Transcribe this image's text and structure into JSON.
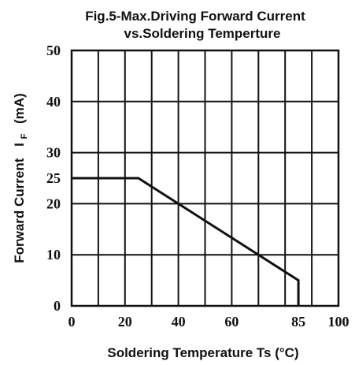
{
  "chart_data": {
    "type": "line",
    "title_line1": "Fig.5-Max.Driving Forward Current",
    "title_line2": "vs.Soldering Temperture",
    "xlabel": "Soldering Temperature Ts (°C)",
    "ylabel_main": "Forward Current",
    "ylabel_symbol": "I",
    "ylabel_sub": "F",
    "ylabel_unit": "(mA)",
    "xlim": [
      0,
      100
    ],
    "ylim": [
      0,
      50
    ],
    "x_tick_labels": [
      {
        "value": 0,
        "label": "0"
      },
      {
        "value": 20,
        "label": "20"
      },
      {
        "value": 40,
        "label": "40"
      },
      {
        "value": 60,
        "label": "60"
      },
      {
        "value": 85,
        "label": "85"
      },
      {
        "value": 100,
        "label": "100"
      }
    ],
    "y_tick_labels": [
      {
        "value": 0,
        "label": "0"
      },
      {
        "value": 10,
        "label": "10"
      },
      {
        "value": 20,
        "label": "20"
      },
      {
        "value": 25,
        "label": "25"
      },
      {
        "value": 30,
        "label": "30"
      },
      {
        "value": 40,
        "label": "40"
      },
      {
        "value": 50,
        "label": "50"
      }
    ],
    "x_gridlines": [
      10,
      20,
      30,
      40,
      50,
      60,
      70,
      80,
      90
    ],
    "y_gridlines": [
      10,
      20,
      30,
      40
    ],
    "grid": true,
    "series": [
      {
        "x": [
          0,
          25,
          85,
          85
        ],
        "y": [
          25,
          25,
          5,
          0
        ]
      }
    ]
  }
}
